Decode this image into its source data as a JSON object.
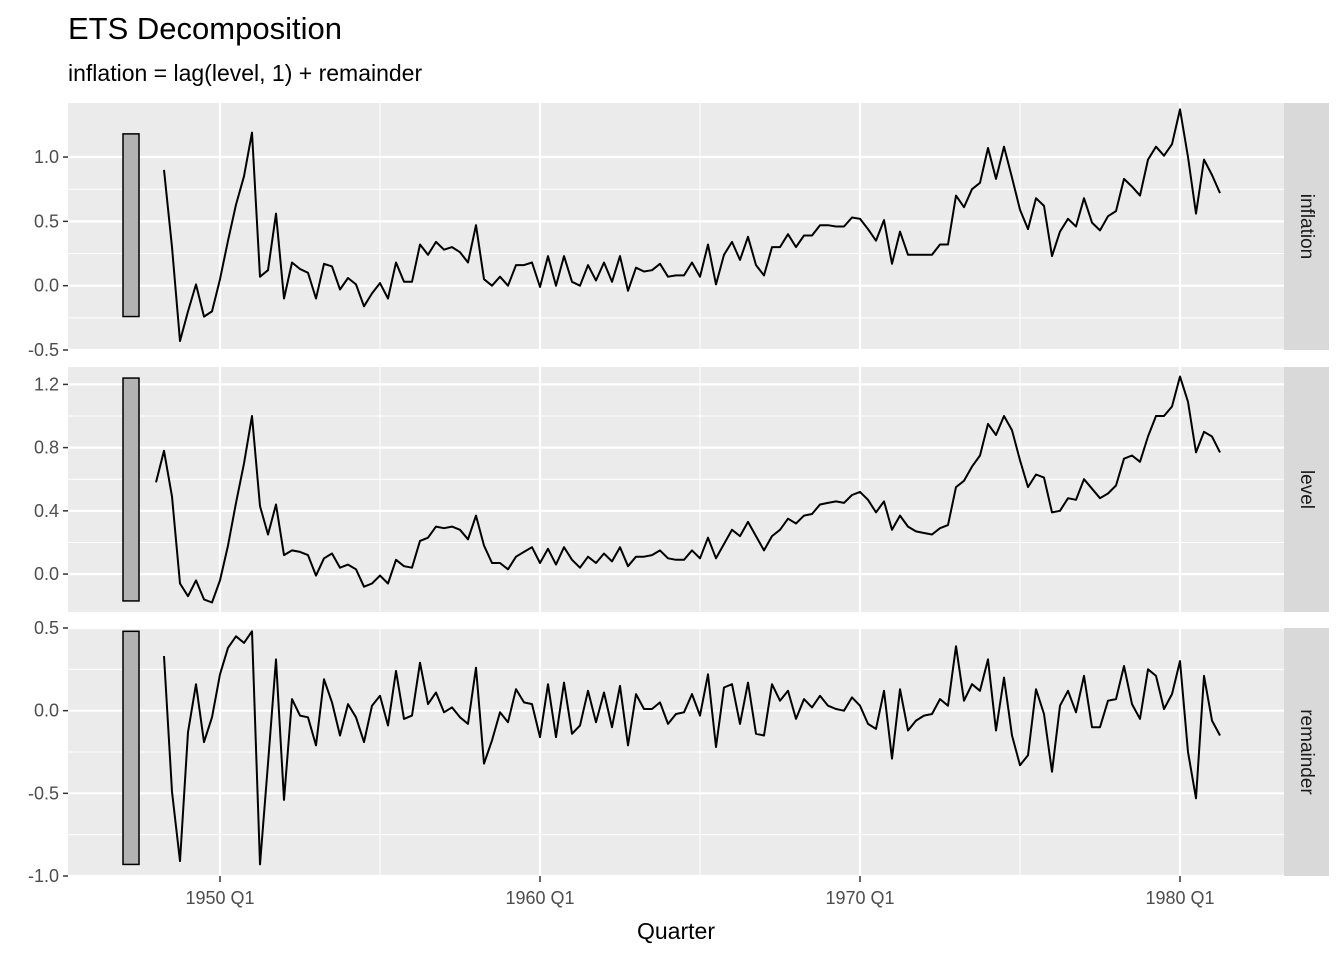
{
  "chart_data": {
    "type": "line",
    "title": "ETS Decomposition",
    "subtitle": "inflation = lag(level, 1) + remainder",
    "xlabel": "Quarter",
    "xlim": [
      1945.25,
      1983.25
    ],
    "x_ticks": [
      {
        "value": 1950,
        "label": "1950 Q1"
      },
      {
        "value": 1960,
        "label": "1960 Q1"
      },
      {
        "value": 1970,
        "label": "1970 Q1"
      },
      {
        "value": 1980,
        "label": "1980 Q1"
      }
    ],
    "x_start": 1948.0,
    "x_step": 0.25,
    "grid": true,
    "panels": [
      {
        "name": "inflation",
        "ylim": [
          -0.5,
          1.42
        ],
        "y_ticks": [
          {
            "value": -0.5,
            "label": "-0.5"
          },
          {
            "value": 0,
            "label": "0.0"
          },
          {
            "value": 0.5,
            "label": "0.5"
          },
          {
            "value": 1.0,
            "label": "1.0"
          }
        ],
        "scale_bar": [
          -0.24,
          1.18
        ],
        "offset": 1,
        "values": [
          0.9,
          0.3,
          -0.43,
          -0.2,
          0.01,
          -0.24,
          -0.2,
          0.05,
          0.35,
          0.63,
          0.85,
          1.19,
          0.07,
          0.12,
          0.56,
          -0.1,
          0.18,
          0.13,
          0.1,
          -0.1,
          0.17,
          0.15,
          -0.03,
          0.06,
          0.01,
          -0.16,
          -0.06,
          0.02,
          -0.1,
          0.18,
          0.03,
          0.03,
          0.32,
          0.24,
          0.34,
          0.28,
          0.3,
          0.26,
          0.18,
          0.47,
          0.05,
          0.0,
          0.07,
          0.0,
          0.16,
          0.16,
          0.18,
          -0.01,
          0.23,
          0.0,
          0.23,
          0.03,
          0.0,
          0.16,
          0.04,
          0.18,
          0.03,
          0.23,
          -0.04,
          0.14,
          0.11,
          0.12,
          0.17,
          0.07,
          0.08,
          0.08,
          0.18,
          0.07,
          0.32,
          0.01,
          0.24,
          0.34,
          0.2,
          0.38,
          0.16,
          0.08,
          0.3,
          0.3,
          0.4,
          0.3,
          0.39,
          0.39,
          0.47,
          0.47,
          0.46,
          0.46,
          0.53,
          0.52,
          0.44,
          0.35,
          0.51,
          0.17,
          0.42,
          0.24,
          0.24,
          0.24,
          0.24,
          0.32,
          0.32,
          0.7,
          0.61,
          0.75,
          0.8,
          1.07,
          0.83,
          1.08,
          0.84,
          0.59,
          0.44,
          0.68,
          0.62,
          0.23,
          0.42,
          0.52,
          0.46,
          0.68,
          0.49,
          0.43,
          0.54,
          0.58,
          0.83,
          0.77,
          0.7,
          0.98,
          1.08,
          1.01,
          1.1,
          1.37,
          1.0,
          0.56,
          0.98,
          0.86,
          0.72
        ]
      },
      {
        "name": "level",
        "ylim": [
          -0.24,
          1.31
        ],
        "y_ticks": [
          {
            "value": 0,
            "label": "0.0"
          },
          {
            "value": 0.4,
            "label": "0.4"
          },
          {
            "value": 0.8,
            "label": "0.8"
          },
          {
            "value": 1.2,
            "label": "1.2"
          }
        ],
        "scale_bar": [
          -0.17,
          1.24
        ],
        "offset": 0,
        "values": [
          0.58,
          0.78,
          0.49,
          -0.06,
          -0.14,
          -0.04,
          -0.16,
          -0.18,
          -0.04,
          0.18,
          0.45,
          0.7,
          1.0,
          0.43,
          0.25,
          0.44,
          0.12,
          0.15,
          0.14,
          0.12,
          -0.01,
          0.1,
          0.13,
          0.04,
          0.06,
          0.03,
          -0.08,
          -0.06,
          -0.01,
          -0.06,
          0.09,
          0.05,
          0.04,
          0.21,
          0.23,
          0.3,
          0.29,
          0.3,
          0.28,
          0.22,
          0.37,
          0.18,
          0.07,
          0.07,
          0.03,
          0.11,
          0.14,
          0.17,
          0.07,
          0.16,
          0.06,
          0.17,
          0.09,
          0.04,
          0.11,
          0.07,
          0.13,
          0.08,
          0.17,
          0.05,
          0.11,
          0.11,
          0.12,
          0.15,
          0.1,
          0.09,
          0.09,
          0.15,
          0.1,
          0.23,
          0.1,
          0.19,
          0.28,
          0.24,
          0.33,
          0.24,
          0.15,
          0.24,
          0.28,
          0.35,
          0.32,
          0.37,
          0.38,
          0.44,
          0.45,
          0.46,
          0.45,
          0.5,
          0.52,
          0.47,
          0.39,
          0.46,
          0.28,
          0.37,
          0.3,
          0.27,
          0.26,
          0.25,
          0.29,
          0.31,
          0.55,
          0.59,
          0.68,
          0.75,
          0.95,
          0.88,
          1.0,
          0.91,
          0.72,
          0.55,
          0.63,
          0.61,
          0.39,
          0.4,
          0.48,
          0.47,
          0.6,
          0.54,
          0.48,
          0.51,
          0.56,
          0.73,
          0.75,
          0.71,
          0.87,
          1.0,
          1.0,
          1.06,
          1.25,
          1.09,
          0.77,
          0.9,
          0.87,
          0.77
        ]
      },
      {
        "name": "remainder",
        "ylim": [
          -1.0,
          0.5
        ],
        "y_ticks": [
          {
            "value": -1.0,
            "label": "-1.0"
          },
          {
            "value": -0.5,
            "label": "-0.5"
          },
          {
            "value": 0,
            "label": "0.0"
          },
          {
            "value": 0.5,
            "label": "0.5"
          }
        ],
        "scale_bar": [
          -0.93,
          0.48
        ],
        "offset": 1,
        "values": [
          0.33,
          -0.49,
          -0.91,
          -0.13,
          0.16,
          -0.19,
          -0.04,
          0.22,
          0.38,
          0.45,
          0.41,
          0.48,
          -0.93,
          -0.32,
          0.31,
          -0.54,
          0.07,
          -0.03,
          -0.04,
          -0.21,
          0.19,
          0.05,
          -0.15,
          0.04,
          -0.04,
          -0.19,
          0.03,
          0.09,
          -0.09,
          0.24,
          -0.05,
          -0.03,
          0.29,
          0.04,
          0.11,
          -0.01,
          0.02,
          -0.04,
          -0.08,
          0.26,
          -0.32,
          -0.18,
          -0.01,
          -0.07,
          0.13,
          0.05,
          0.04,
          -0.16,
          0.16,
          -0.16,
          0.17,
          -0.14,
          -0.09,
          0.12,
          -0.07,
          0.11,
          -0.1,
          0.15,
          -0.21,
          0.1,
          0.01,
          0.01,
          0.05,
          -0.08,
          -0.02,
          -0.01,
          0.1,
          -0.03,
          0.22,
          -0.22,
          0.14,
          0.16,
          -0.08,
          0.17,
          -0.14,
          -0.15,
          0.16,
          0.06,
          0.12,
          -0.05,
          0.07,
          0.02,
          0.09,
          0.03,
          0.01,
          0.0,
          0.08,
          0.03,
          -0.08,
          -0.11,
          0.12,
          -0.29,
          0.13,
          -0.12,
          -0.06,
          -0.03,
          -0.02,
          0.07,
          0.03,
          0.39,
          0.06,
          0.16,
          0.12,
          0.31,
          -0.12,
          0.2,
          -0.15,
          -0.33,
          -0.27,
          0.13,
          -0.02,
          -0.37,
          0.03,
          0.12,
          -0.01,
          0.21,
          -0.1,
          -0.1,
          0.06,
          0.07,
          0.27,
          0.04,
          -0.05,
          0.25,
          0.21,
          0.01,
          0.1,
          0.3,
          -0.25,
          -0.53,
          0.21,
          -0.06,
          -0.15
        ]
      }
    ]
  }
}
